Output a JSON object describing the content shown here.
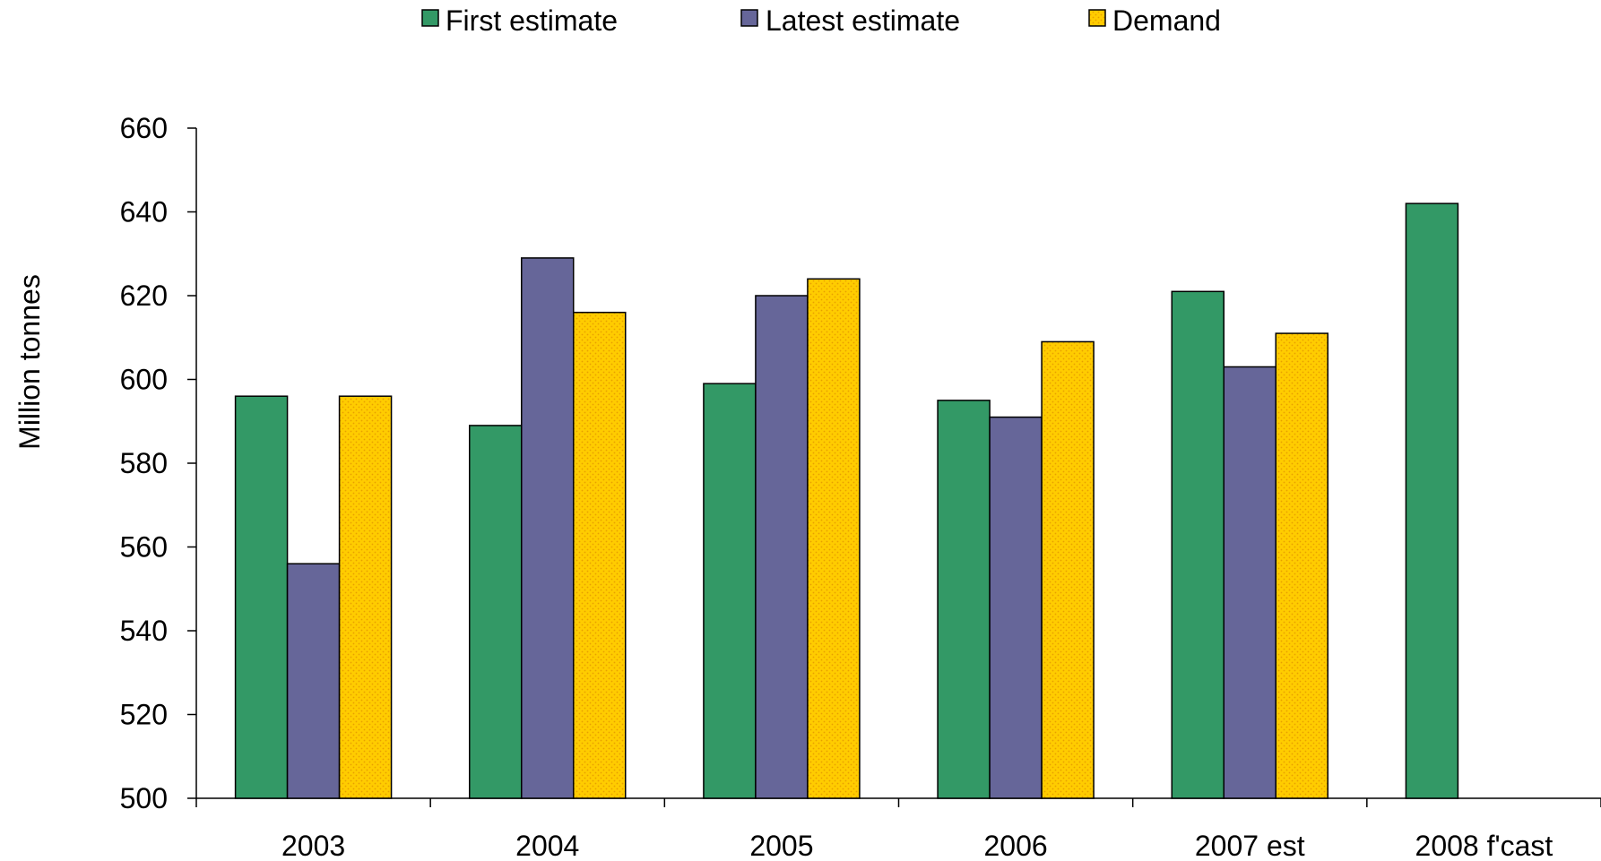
{
  "chart_data": {
    "type": "bar",
    "title": "",
    "xlabel": "",
    "ylabel": "Million tonnes",
    "ylim": [
      500,
      660
    ],
    "yticks": [
      500,
      520,
      540,
      560,
      580,
      600,
      620,
      640,
      660
    ],
    "grid": false,
    "legend_position": "top",
    "categories": [
      "2003",
      "2004",
      "2005",
      "2006",
      "2007 est",
      "2008 f'cast"
    ],
    "series": [
      {
        "name": "First estimate",
        "color": "#339966",
        "pattern": "solid",
        "values": [
          596,
          589,
          599,
          595,
          621,
          642
        ]
      },
      {
        "name": "Latest estimate",
        "color": "#666699",
        "pattern": "solid",
        "values": [
          556,
          629,
          620,
          591,
          603,
          null
        ]
      },
      {
        "name": "Demand",
        "color": "#FFCC00",
        "pattern": "dotted",
        "values": [
          596,
          616,
          624,
          609,
          611,
          null
        ]
      }
    ]
  }
}
